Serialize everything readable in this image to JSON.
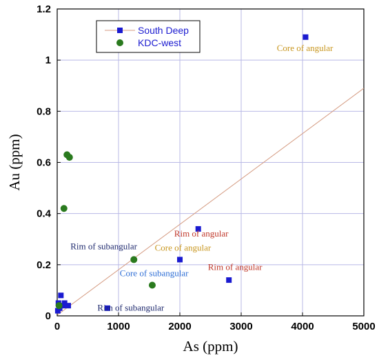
{
  "chart_data": {
    "type": "scatter",
    "xlabel": "As (ppm)",
    "ylabel": "Au (ppm)",
    "xlim": [
      0,
      5000
    ],
    "ylim": [
      0,
      1.2
    ],
    "x_ticks": [
      "0",
      "1000",
      "2000",
      "3000",
      "4000",
      "5000"
    ],
    "y_ticks": [
      "0",
      "0.2",
      "0.4",
      "0.6",
      "0.8",
      "1",
      "1.2"
    ],
    "grid": true,
    "legend_position": "top-left",
    "series": [
      {
        "name": "South Deep",
        "marker": "square",
        "color": "#1a1ad0",
        "points": [
          {
            "x": 4050,
            "y": 1.09
          },
          {
            "x": 2300,
            "y": 0.34
          },
          {
            "x": 2000,
            "y": 0.22
          },
          {
            "x": 2800,
            "y": 0.14
          },
          {
            "x": 820,
            "y": 0.03
          },
          {
            "x": 20,
            "y": 0.05
          },
          {
            "x": 40,
            "y": 0.03
          },
          {
            "x": 60,
            "y": 0.08
          },
          {
            "x": 90,
            "y": 0.04
          },
          {
            "x": 120,
            "y": 0.05
          },
          {
            "x": 180,
            "y": 0.04
          },
          {
            "x": 10,
            "y": 0.02
          }
        ]
      },
      {
        "name": "KDC-west",
        "marker": "circle",
        "color": "#2a7a1e",
        "points": [
          {
            "x": 160,
            "y": 0.63
          },
          {
            "x": 200,
            "y": 0.62
          },
          {
            "x": 110,
            "y": 0.42
          },
          {
            "x": 1250,
            "y": 0.22
          },
          {
            "x": 1550,
            "y": 0.12
          },
          {
            "x": 30,
            "y": 0.04
          }
        ]
      }
    ],
    "trendline": {
      "x": [
        0,
        5000
      ],
      "y": [
        0.003,
        0.89
      ],
      "color": "#d49a80"
    },
    "annotations": [
      {
        "text": "Core of angular",
        "x": 4040,
        "y": 1.035,
        "color": "#c8961e",
        "anchor": "middle"
      },
      {
        "text": "Rim of angular",
        "x": 2350,
        "y": 0.31,
        "color": "#c0392b",
        "anchor": "middle"
      },
      {
        "text": "Core of angular",
        "x": 2050,
        "y": 0.255,
        "color": "#c8961e",
        "anchor": "middle"
      },
      {
        "text": "Rim of subangular",
        "x": 760,
        "y": 0.26,
        "color": "#1f2a6e",
        "anchor": "middle"
      },
      {
        "text": "Rim of angular",
        "x": 2900,
        "y": 0.18,
        "color": "#c0392b",
        "anchor": "middle"
      },
      {
        "text": "Core of subangular",
        "x": 1580,
        "y": 0.155,
        "color": "#2f6fd6",
        "anchor": "middle"
      },
      {
        "text": "Rim of subangular",
        "x": 1200,
        "y": 0.02,
        "color": "#1f2a6e",
        "anchor": "middle"
      }
    ]
  }
}
